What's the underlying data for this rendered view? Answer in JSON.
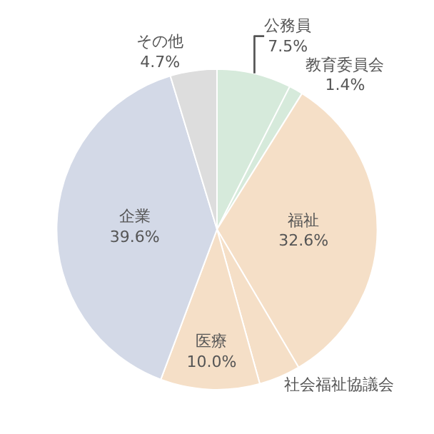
{
  "chart_data": {
    "type": "pie",
    "categories": [
      "公務員",
      "教育委員会",
      "福祉",
      "社会福祉協議会",
      "医療",
      "企業",
      "その他"
    ],
    "values": [
      7.5,
      1.4,
      32.6,
      4.2,
      10.0,
      39.6,
      4.7
    ],
    "value_labels": [
      "7.5%",
      "1.4%",
      "32.6%",
      null,
      "10.0%",
      "39.6%",
      "4.7%"
    ],
    "colors": [
      "#d6eadb",
      "#d6eadb",
      "#f5dfc7",
      "#f5dfc7",
      "#f5dfc7",
      "#d3d9e7",
      "#dddddd"
    ],
    "legend": false
  }
}
